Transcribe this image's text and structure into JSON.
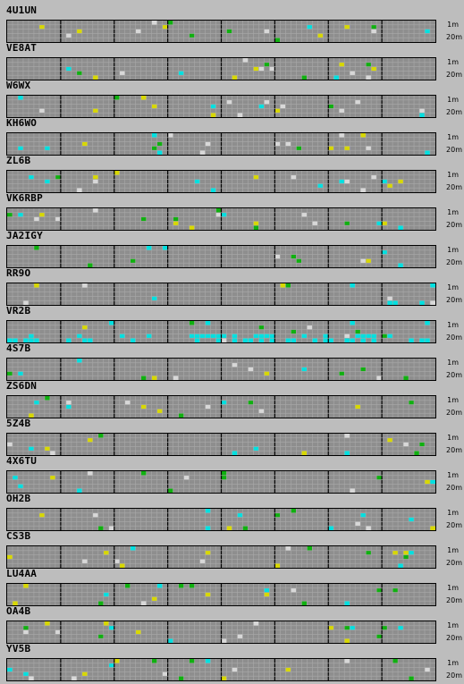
{
  "band_labels": {
    "top": "1m",
    "bottom": "20m"
  },
  "colors": {
    "background": "#bdbdbd",
    "cell": "#8e8e8e",
    "grid_line": "#a9a9a9",
    "hour_divider": "#000000",
    "signal_cyan": "#00e0e0",
    "signal_green": "#10b010",
    "signal_yellow": "#d8d800",
    "signal_white": "#d8d8d8"
  },
  "beacons": [
    {
      "callsign": "4U1UN"
    },
    {
      "callsign": "VE8AT"
    },
    {
      "callsign": "W6WX"
    },
    {
      "callsign": "KH6WO"
    },
    {
      "callsign": "ZL6B"
    },
    {
      "callsign": "VK6RBP"
    },
    {
      "callsign": "JA2IGY"
    },
    {
      "callsign": "RR9O"
    },
    {
      "callsign": "VR2B"
    },
    {
      "callsign": "4S7B"
    },
    {
      "callsign": "ZS6DN"
    },
    {
      "callsign": "5Z4B"
    },
    {
      "callsign": "4X6TU"
    },
    {
      "callsign": "OH2B"
    },
    {
      "callsign": "CS3B"
    },
    {
      "callsign": "LU4AA"
    },
    {
      "callsign": "OA4B"
    },
    {
      "callsign": "YV5B"
    }
  ]
}
